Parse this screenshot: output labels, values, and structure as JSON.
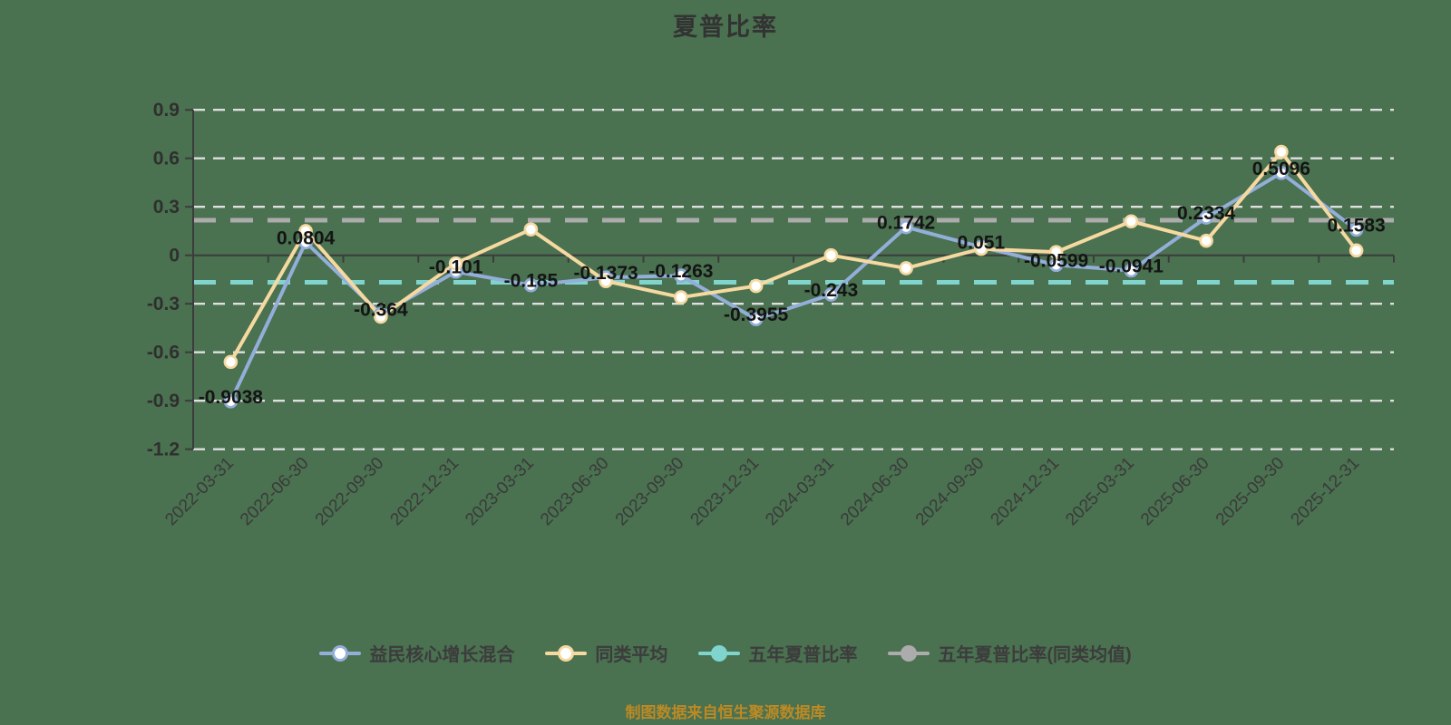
{
  "page": {
    "background_color": "#4A7150"
  },
  "header": {
    "title": "夏普比率"
  },
  "footer": {
    "source_note": "制图数据来自恒生聚源数据库",
    "color": "#BC8A25"
  },
  "chart_data": {
    "type": "line",
    "title": "夏普比率",
    "categories": [
      "2022-03-31",
      "2022-06-30",
      "2022-09-30",
      "2022-12-31",
      "2023-03-31",
      "2023-06-30",
      "2023-09-30",
      "2023-12-31",
      "2024-03-31",
      "2024-06-30",
      "2024-09-30",
      "2024-12-31",
      "2025-03-31",
      "2025-06-30",
      "2025-09-30",
      "2025-12-31"
    ],
    "series": [
      {
        "name": "益民核心增长混合",
        "color": "#93AED9",
        "marker": "hollow",
        "values": [
          -0.9038,
          0.0804,
          -0.364,
          -0.101,
          -0.185,
          -0.1373,
          -0.1263,
          -0.3955,
          -0.243,
          0.1742,
          0.051,
          -0.0599,
          -0.0941,
          0.2334,
          0.5096,
          0.1583
        ],
        "labels": [
          "-0.9038",
          "0.0804",
          "-0.364",
          "-0.101",
          "-0.185",
          "-0.1373",
          "-0.1263",
          "-0.3955",
          "-0.243",
          "0.1742",
          "0.051",
          "-0.0599",
          "-0.0941",
          "0.2334",
          "0.5096",
          "0.1583"
        ],
        "label_color": "#141414"
      },
      {
        "name": "同类平均",
        "color": "#F6D9A1",
        "marker": "hollow",
        "values": [
          -0.66,
          0.15,
          -0.38,
          -0.05,
          0.16,
          -0.16,
          -0.26,
          -0.19,
          0.0,
          -0.08,
          0.04,
          0.02,
          0.21,
          0.09,
          0.64,
          0.03
        ],
        "labels": [],
        "label_color": "#141414"
      }
    ],
    "reference_lines": [
      {
        "name": "五年夏普比率",
        "color": "#80D4CE",
        "value": -0.167,
        "style": "dashed"
      },
      {
        "name": "五年夏普比率(同类均值)",
        "color": "#ACACAC",
        "value": 0.217,
        "style": "dashed"
      }
    ],
    "legend": [
      {
        "label": "益民核心增长混合",
        "color": "#93AED9",
        "fill": "hollow"
      },
      {
        "label": "同类平均",
        "color": "#F6D9A1",
        "fill": "hollow"
      },
      {
        "label": "五年夏普比率",
        "color": "#80D4CE",
        "fill": "solid"
      },
      {
        "label": "五年夏普比率(同类均值)",
        "color": "#ACACAC",
        "fill": "solid"
      }
    ],
    "ylim": [
      -1.2,
      0.9
    ],
    "yticks": [
      0.9,
      0.6,
      0.3,
      0,
      -0.3,
      -0.6,
      -0.9,
      -1.2
    ],
    "grid": "horizontal-dashed-white",
    "grid_color": "#DFDFDF",
    "axis_color": "#3C3C3C",
    "tick_label_color": "#2F2F2F",
    "x_label_color": "#3A3A3A",
    "x_label_rotation": 45,
    "legend_position": "bottom"
  }
}
